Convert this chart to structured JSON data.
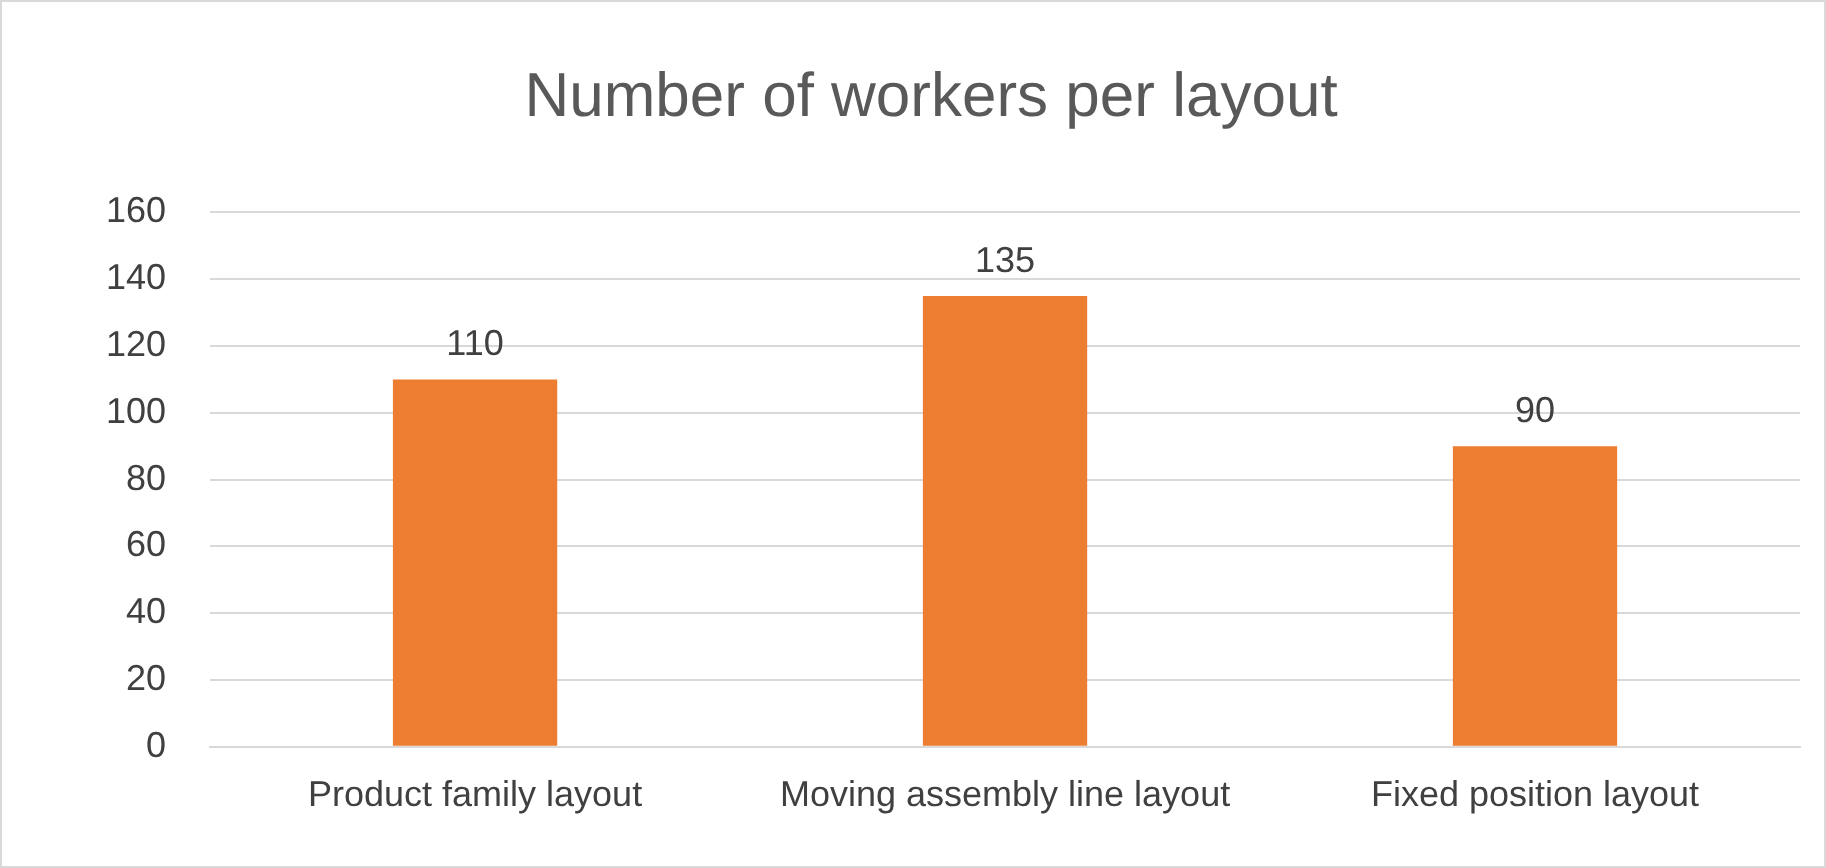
{
  "chart_data": {
    "type": "bar",
    "title": "Number of workers per layout",
    "categories": [
      "Product family layout",
      "Moving assembly line layout",
      "Fixed position layout"
    ],
    "values": [
      110,
      135,
      90
    ],
    "color": "#ed7d31",
    "ylim": [
      0,
      160
    ],
    "yticks": [
      0,
      20,
      40,
      60,
      80,
      100,
      120,
      140,
      160
    ],
    "grid": "y",
    "data_labels": true
  }
}
